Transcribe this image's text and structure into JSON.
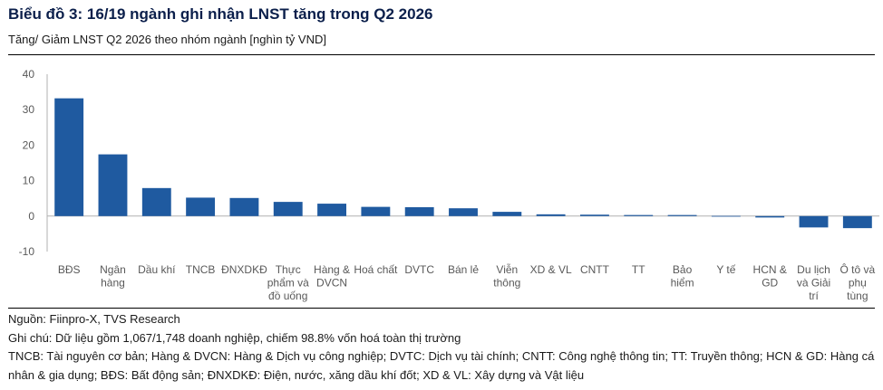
{
  "header": {
    "title": "Biểu đồ 3: 16/19 ngành ghi nhận LNST tăng trong Q2 2026",
    "subtitle": "Tăng/ Giảm LNST Q2 2026 theo nhóm ngành [nghìn tỷ VND]"
  },
  "colors": {
    "bar": "#1f5aa0",
    "title": "#0b1f4b",
    "axis_line": "#b0b0b0",
    "tick_text": "#595959"
  },
  "chart_data": {
    "type": "bar",
    "title": "",
    "xlabel": "",
    "ylabel": "",
    "ylim": [
      -10,
      40
    ],
    "yticks": [
      40,
      30,
      20,
      10,
      0,
      -10
    ],
    "grid": false,
    "legend": "none",
    "categories": [
      [
        "BĐS"
      ],
      [
        "Ngân",
        "hàng"
      ],
      [
        "Dầu khí"
      ],
      [
        "TNCB"
      ],
      [
        "ĐNXDKĐ"
      ],
      [
        "Thực",
        "phẩm và",
        "đồ uống"
      ],
      [
        "Hàng &",
        "DVCN"
      ],
      [
        "Hoá chất"
      ],
      [
        "DVTC"
      ],
      [
        "Bán lẻ"
      ],
      [
        "Viễn",
        "thông"
      ],
      [
        "XD & VL"
      ],
      [
        "CNTT"
      ],
      [
        "TT"
      ],
      [
        "Bảo",
        "hiểm"
      ],
      [
        "Y tế"
      ],
      [
        "HCN &",
        "GD"
      ],
      [
        "Du lịch",
        "và Giải",
        "trí"
      ],
      [
        "Ô tô và",
        "phụ",
        "tùng"
      ]
    ],
    "values": [
      33.2,
      17.4,
      7.9,
      5.2,
      5.1,
      4.0,
      3.5,
      2.6,
      2.5,
      2.2,
      1.2,
      0.5,
      0.4,
      0.3,
      0.3,
      0.05,
      -0.4,
      -3.2,
      -3.4
    ]
  },
  "notes": {
    "source": "Nguồn: Fiinpro-X, TVS Research",
    "note": "Ghi chú: Dữ liệu gồm 1,067/1,748 doanh nghiệp, chiếm 98.8% vốn hoá toàn thị trường",
    "abbreviations": "TNCB: Tài nguyên cơ bản; Hàng & DVCN: Hàng & Dịch vụ công nghiệp; DVTC: Dịch vụ tài chính; CNTT: Công nghệ thông tin; TT: Truyền thông; HCN & GD: Hàng cá nhân & gia dụng; BĐS: Bất động sản; ĐNXDKĐ: Điện, nước, xăng dầu khí đốt; XD & VL: Xây dựng và Vật liệu"
  }
}
